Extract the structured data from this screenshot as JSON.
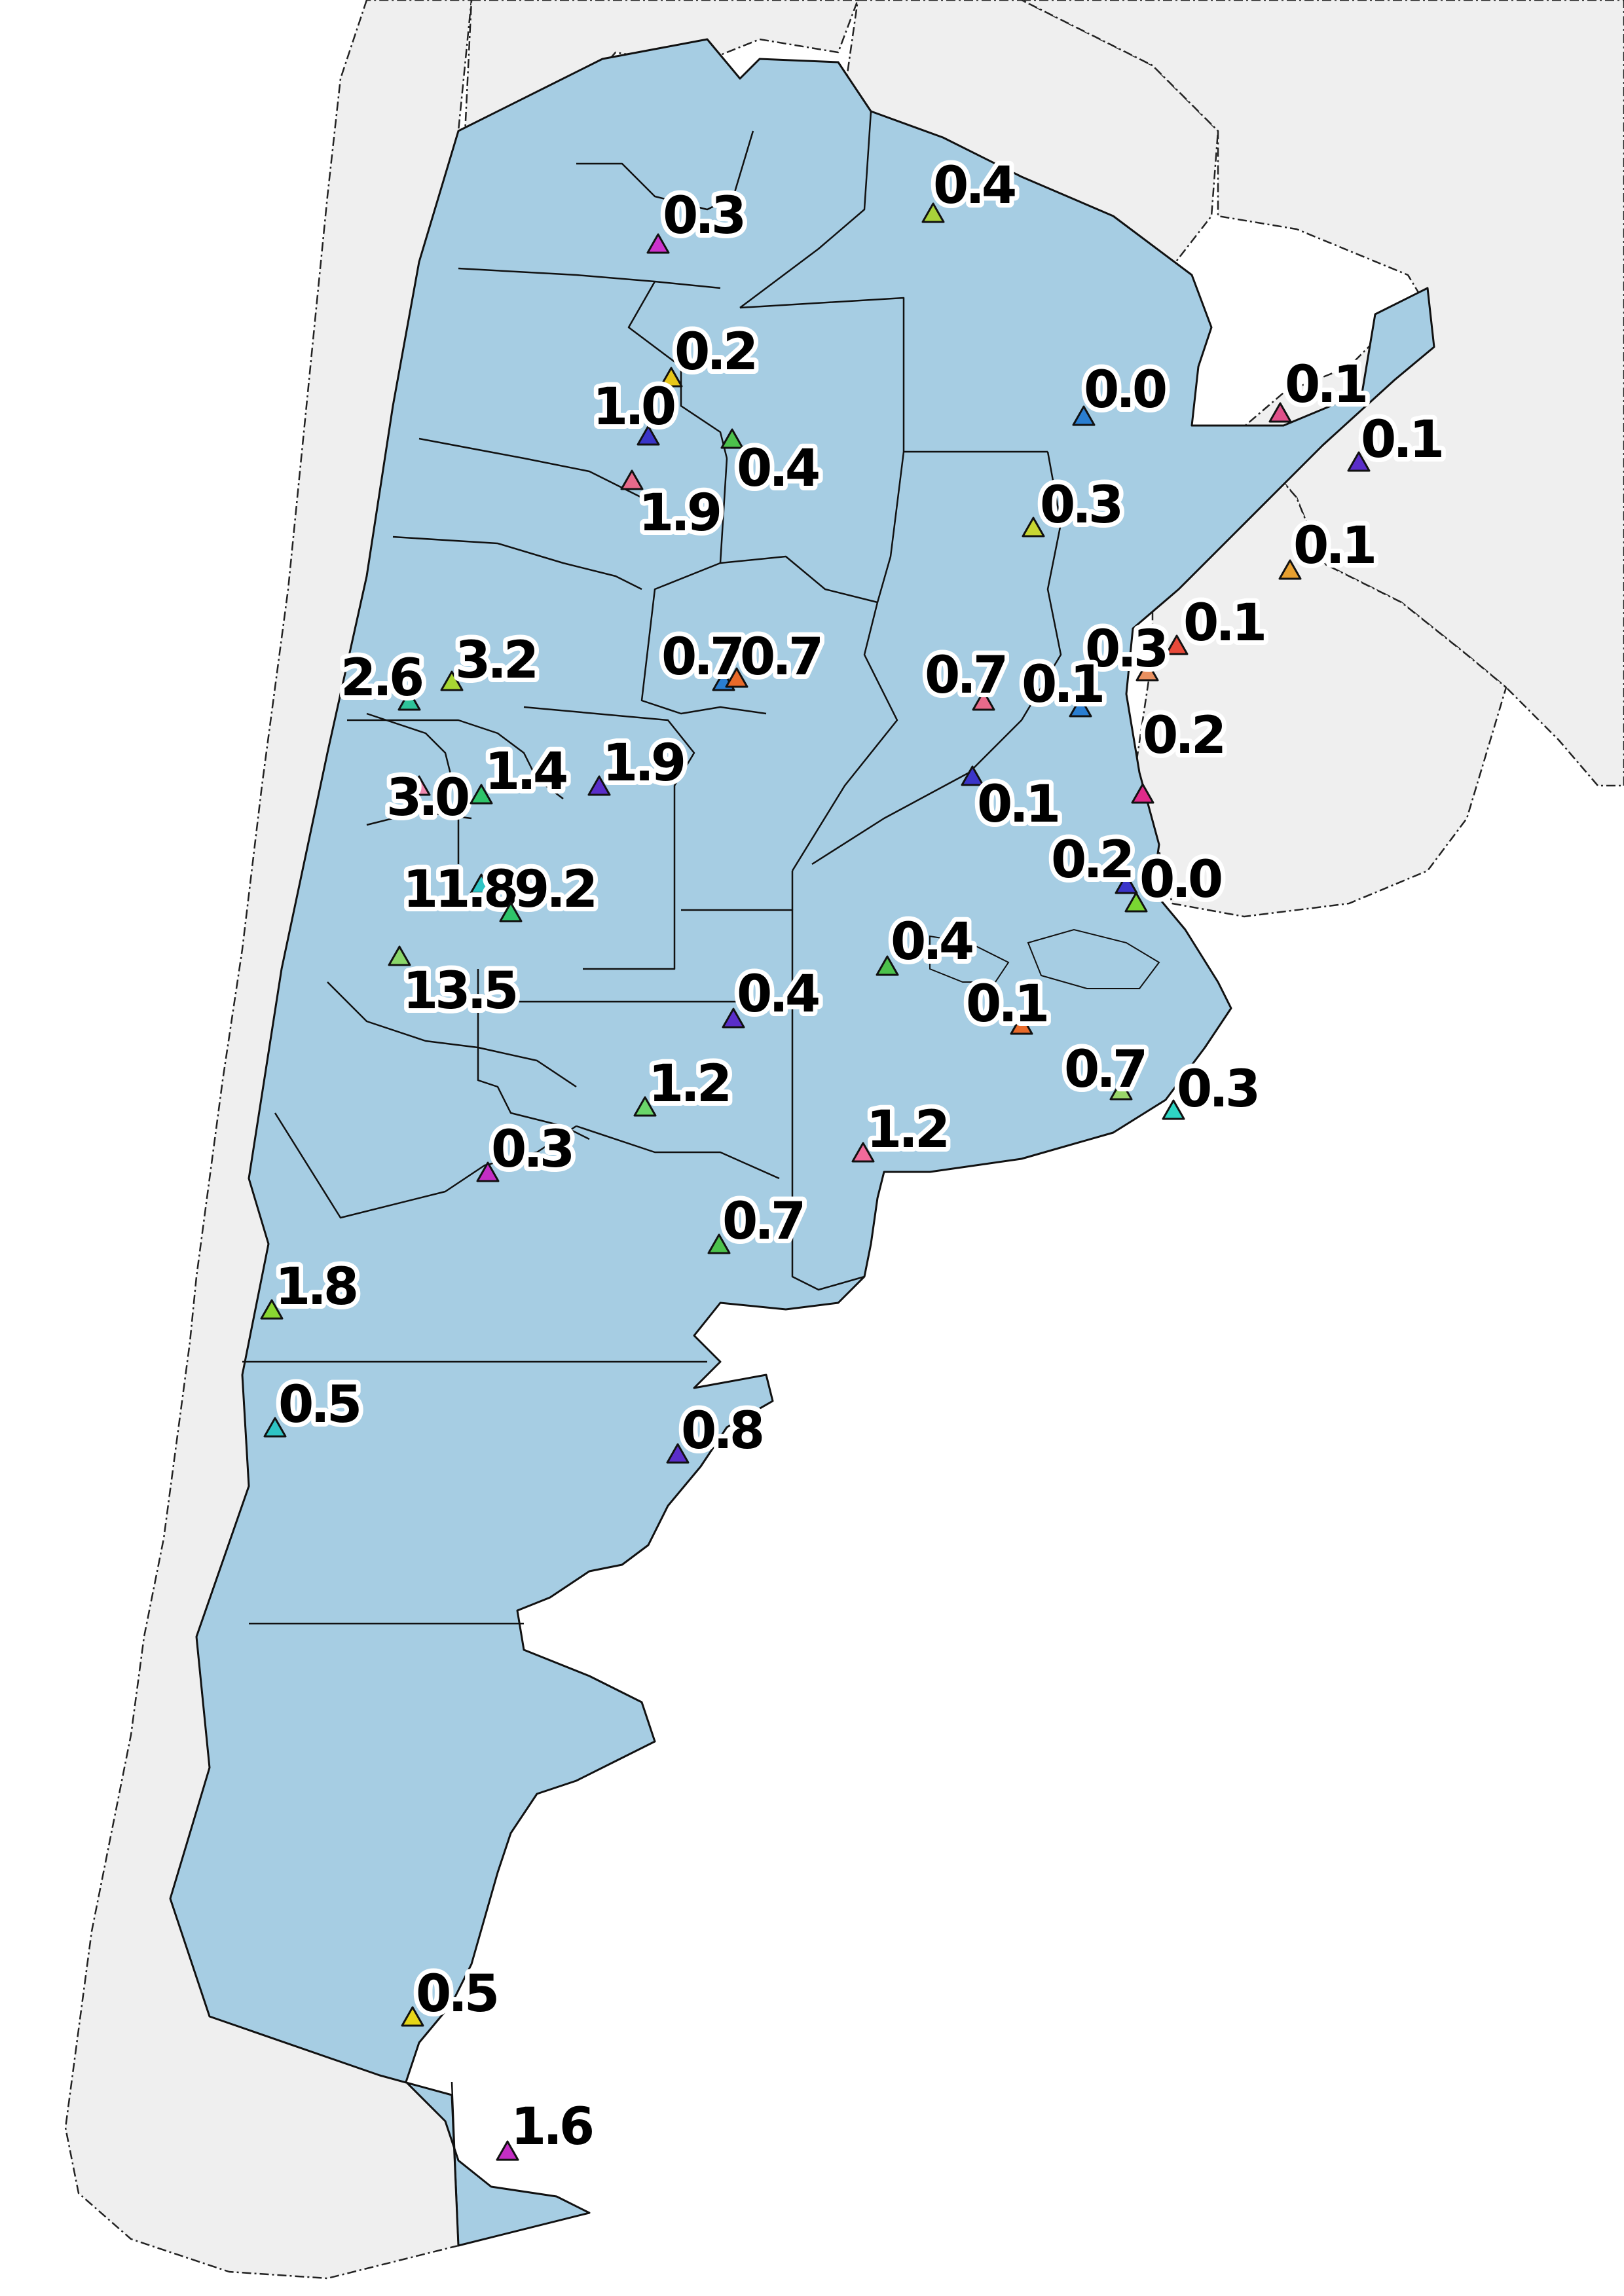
{
  "map": {
    "region": "Argentina",
    "colors": {
      "ocean": "#ffffff",
      "neighbors": "#efefef",
      "argentina_fill": "#a6cde3",
      "borders": "#111111",
      "label_text": "#000000",
      "label_halo": "#ffffff"
    },
    "stations": [
      {
        "id": "s01",
        "value": "0.3",
        "color": "#cc33cc"
      },
      {
        "id": "s02",
        "value": "0.4",
        "color": "#a8d13a"
      },
      {
        "id": "s03",
        "value": "0.2",
        "color": "#e6c619"
      },
      {
        "id": "s04",
        "value": "1.0",
        "color": "#3b35c9"
      },
      {
        "id": "s05",
        "value": "0.4",
        "color": "#4cc24c"
      },
      {
        "id": "s06",
        "value": "1.9",
        "color": "#e86a8a"
      },
      {
        "id": "s07",
        "value": "0.0",
        "color": "#2a7ed1"
      },
      {
        "id": "s08",
        "value": "0.1",
        "color": "#e0508a"
      },
      {
        "id": "s09",
        "value": "0.1",
        "color": "#5a2ec9"
      },
      {
        "id": "s10",
        "value": "0.3",
        "color": "#c8d632"
      },
      {
        "id": "s11",
        "value": "0.1",
        "color": "#e8a030"
      },
      {
        "id": "s12",
        "value": "0.1",
        "color": "#e84a3a"
      },
      {
        "id": "s13",
        "value": "0.3",
        "color": "#e89060"
      },
      {
        "id": "s14",
        "value": "2.6",
        "color": "#2ec49a"
      },
      {
        "id": "s15",
        "value": "3.2",
        "color": "#a8d632"
      },
      {
        "id": "s16",
        "value": "0.7",
        "color": "#2a7ed1"
      },
      {
        "id": "s17",
        "value": "0.7",
        "color": "#e86a2a"
      },
      {
        "id": "s18",
        "value": "0.7",
        "color": "#e86a8a"
      },
      {
        "id": "s19",
        "value": "0.1",
        "color": "#2a7ed1"
      },
      {
        "id": "s20",
        "value": "0.2",
        "color": "#e02a8a"
      },
      {
        "id": "s21",
        "value": "3.0",
        "color": "#f08ab0"
      },
      {
        "id": "s22",
        "value": "1.4",
        "color": "#2ec46a"
      },
      {
        "id": "s23",
        "value": "1.9",
        "color": "#5a2ec9"
      },
      {
        "id": "s24",
        "value": "0.1",
        "color": "#3b35c9"
      },
      {
        "id": "s25",
        "value": "11.8",
        "color": "#2ec4c4"
      },
      {
        "id": "s26",
        "value": "9.2",
        "color": "#2ec46a"
      },
      {
        "id": "s27",
        "value": "0.2",
        "color": "#3b35c9"
      },
      {
        "id": "s28",
        "value": "0.0",
        "color": "#7ad632"
      },
      {
        "id": "s29",
        "value": "0.4",
        "color": "#4cc24c"
      },
      {
        "id": "s30",
        "value": "13.5",
        "color": "#8ad66a"
      },
      {
        "id": "s31",
        "value": "0.4",
        "color": "#5a2ec9"
      },
      {
        "id": "s32",
        "value": "0.1",
        "color": "#e86a2a"
      },
      {
        "id": "s33",
        "value": "1.2",
        "color": "#6ad66a"
      },
      {
        "id": "s34",
        "value": "0.7",
        "color": "#9ad66a"
      },
      {
        "id": "s35",
        "value": "0.3",
        "color": "#2ed6c4"
      },
      {
        "id": "s36",
        "value": "1.2",
        "color": "#f06a9a"
      },
      {
        "id": "s37",
        "value": "0.3",
        "color": "#c42ec4"
      },
      {
        "id": "s38",
        "value": "0.7",
        "color": "#4cc24c"
      },
      {
        "id": "s39",
        "value": "1.8",
        "color": "#8ad632"
      },
      {
        "id": "s40",
        "value": "0.5",
        "color": "#2ec4c4"
      },
      {
        "id": "s41",
        "value": "0.8",
        "color": "#5a2ec9"
      },
      {
        "id": "s42",
        "value": "0.5",
        "color": "#e6d619"
      },
      {
        "id": "s43",
        "value": "1.6",
        "color": "#c42ec4"
      }
    ]
  }
}
